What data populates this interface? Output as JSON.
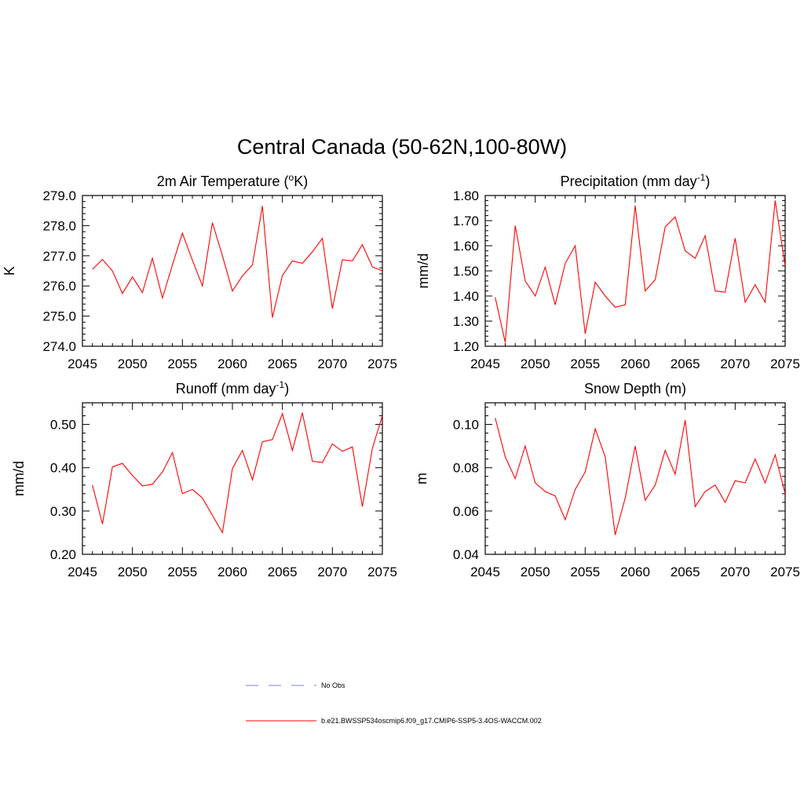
{
  "figure": {
    "title": "Central Canada (50-62N,100-80W)"
  },
  "legend": {
    "entries": [
      {
        "label": "No Obs",
        "color": "#9999e6",
        "style": "dashed"
      },
      {
        "label": "b.e21.BWSSP534oscmip6.f09_g17.CMIP6-SSP5-3.4OS-WACCM.002",
        "color": "#ff0000",
        "style": "solid"
      }
    ]
  },
  "chart_data": [
    {
      "type": "line",
      "title": "2m Air Temperature (",
      "title_sup": "o",
      "title_end": "K)",
      "ylabel": "K",
      "xlim": [
        2045,
        2075
      ],
      "ylim": [
        274.0,
        279.0
      ],
      "x_ticks": [
        "2045",
        "2050",
        "2055",
        "2060",
        "2065",
        "2070",
        "2075"
      ],
      "y_ticks": [
        "274.0",
        "275.0",
        "276.0",
        "277.0",
        "278.0",
        "279.0"
      ],
      "series": [
        {
          "name": "b.e21.BWSSP534oscmip6.f09_g17.CMIP6-SSP5-3.4OS-WACCM.002",
          "color": "#ff0000",
          "x": [
            2046,
            2047,
            2048,
            2049,
            2050,
            2051,
            2052,
            2053,
            2054,
            2055,
            2056,
            2057,
            2058,
            2059,
            2060,
            2061,
            2062,
            2063,
            2064,
            2065,
            2066,
            2067,
            2068,
            2069,
            2070,
            2071,
            2072,
            2073,
            2074,
            2075
          ],
          "values": [
            276.55,
            276.88,
            276.5,
            275.75,
            276.3,
            275.78,
            276.92,
            275.6,
            276.7,
            277.75,
            276.85,
            276.0,
            278.1,
            277.0,
            275.83,
            276.33,
            276.7,
            278.65,
            274.95,
            276.35,
            276.83,
            276.75,
            277.13,
            277.58,
            275.25,
            276.87,
            276.83,
            277.37,
            276.63,
            276.5
          ]
        }
      ]
    },
    {
      "type": "line",
      "title": "Precipitation (mm day",
      "title_sup": "-1",
      "title_end": ")",
      "ylabel": "mm/d",
      "xlim": [
        2045,
        2075
      ],
      "ylim": [
        1.2,
        1.8
      ],
      "x_ticks": [
        "2045",
        "2050",
        "2055",
        "2060",
        "2065",
        "2070",
        "2075"
      ],
      "y_ticks": [
        "1.20",
        "1.30",
        "1.40",
        "1.50",
        "1.60",
        "1.70",
        "1.80"
      ],
      "series": [
        {
          "name": "b.e21.BWSSP534oscmip6.f09_g17.CMIP6-SSP5-3.4OS-WACCM.002",
          "color": "#ff0000",
          "x": [
            2046,
            2047,
            2048,
            2049,
            2050,
            2051,
            2052,
            2053,
            2054,
            2055,
            2056,
            2057,
            2058,
            2059,
            2060,
            2061,
            2062,
            2063,
            2064,
            2065,
            2066,
            2067,
            2068,
            2069,
            2070,
            2071,
            2072,
            2073,
            2074,
            2075
          ],
          "values": [
            1.395,
            1.215,
            1.68,
            1.46,
            1.4,
            1.515,
            1.365,
            1.53,
            1.6,
            1.25,
            1.455,
            1.4,
            1.355,
            1.365,
            1.76,
            1.42,
            1.465,
            1.675,
            1.715,
            1.58,
            1.55,
            1.64,
            1.42,
            1.415,
            1.63,
            1.375,
            1.445,
            1.375,
            1.78,
            1.52
          ]
        }
      ]
    },
    {
      "type": "line",
      "title": "Runoff (mm day",
      "title_sup": "-1",
      "title_end": ")",
      "ylabel": "mm/d",
      "xlim": [
        2045,
        2075
      ],
      "ylim": [
        0.2,
        0.55
      ],
      "x_ticks": [
        "2045",
        "2050",
        "2055",
        "2060",
        "2065",
        "2070",
        "2075"
      ],
      "y_ticks": [
        "0.20",
        "0.30",
        "0.40",
        "0.50"
      ],
      "series": [
        {
          "name": "b.e21.BWSSP534oscmip6.f09_g17.CMIP6-SSP5-3.4OS-WACCM.002",
          "color": "#ff0000",
          "x": [
            2046,
            2047,
            2048,
            2049,
            2050,
            2051,
            2052,
            2053,
            2054,
            2055,
            2056,
            2057,
            2058,
            2059,
            2060,
            2061,
            2062,
            2063,
            2064,
            2065,
            2066,
            2067,
            2068,
            2069,
            2070,
            2071,
            2072,
            2073,
            2074,
            2075
          ],
          "values": [
            0.36,
            0.27,
            0.402,
            0.41,
            0.382,
            0.358,
            0.362,
            0.39,
            0.435,
            0.34,
            0.35,
            0.33,
            0.29,
            0.25,
            0.398,
            0.44,
            0.372,
            0.46,
            0.465,
            0.525,
            0.44,
            0.527,
            0.415,
            0.412,
            0.455,
            0.438,
            0.448,
            0.31,
            0.445,
            0.52
          ]
        }
      ]
    },
    {
      "type": "line",
      "title": "Snow Depth (m)",
      "title_sup": "",
      "title_end": "",
      "ylabel": "m",
      "xlim": [
        2045,
        2075
      ],
      "ylim": [
        0.04,
        0.11
      ],
      "x_ticks": [
        "2045",
        "2050",
        "2055",
        "2060",
        "2065",
        "2070",
        "2075"
      ],
      "y_ticks": [
        "0.04",
        "0.06",
        "0.08",
        "0.10"
      ],
      "series": [
        {
          "name": "b.e21.BWSSP534oscmip6.f09_g17.CMIP6-SSP5-3.4OS-WACCM.002",
          "color": "#ff0000",
          "x": [
            2046,
            2047,
            2048,
            2049,
            2050,
            2051,
            2052,
            2053,
            2054,
            2055,
            2056,
            2057,
            2058,
            2059,
            2060,
            2061,
            2062,
            2063,
            2064,
            2065,
            2066,
            2067,
            2068,
            2069,
            2070,
            2071,
            2072,
            2073,
            2074,
            2075
          ],
          "values": [
            0.103,
            0.085,
            0.075,
            0.09,
            0.073,
            0.069,
            0.067,
            0.056,
            0.07,
            0.078,
            0.098,
            0.085,
            0.049,
            0.066,
            0.09,
            0.065,
            0.072,
            0.088,
            0.077,
            0.102,
            0.062,
            0.069,
            0.072,
            0.064,
            0.074,
            0.073,
            0.084,
            0.073,
            0.086,
            0.068
          ]
        }
      ]
    }
  ]
}
